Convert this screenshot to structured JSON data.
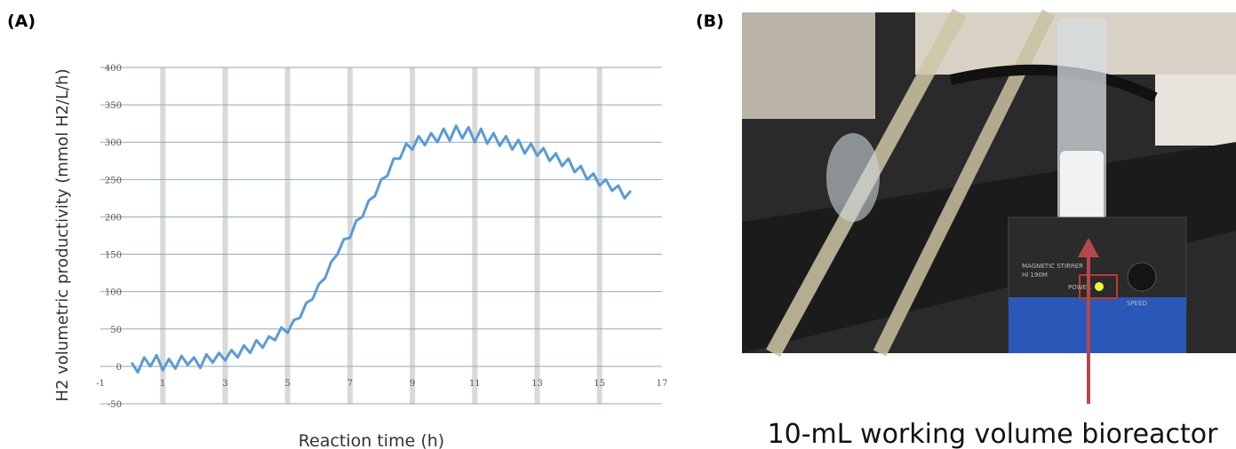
{
  "chart_data": {
    "type": "line",
    "panel_label": "(A)",
    "x_label": "Reaction time (h)",
    "y_label": "H2 volumetric productivity (mmol H2/L/h)",
    "x": [
      0,
      0.2,
      0.4,
      0.6,
      0.8,
      1.0,
      1.2,
      1.4,
      1.6,
      1.8,
      2.0,
      2.2,
      2.4,
      2.6,
      2.8,
      3.0,
      3.2,
      3.4,
      3.6,
      3.8,
      4.0,
      4.2,
      4.4,
      4.6,
      4.8,
      5.0,
      5.2,
      5.4,
      5.6,
      5.8,
      6.0,
      6.2,
      6.4,
      6.6,
      6.8,
      7.0,
      7.2,
      7.4,
      7.6,
      7.8,
      8.0,
      8.2,
      8.4,
      8.6,
      8.8,
      9.0,
      9.2,
      9.4,
      9.6,
      9.8,
      10.0,
      10.2,
      10.4,
      10.6,
      10.8,
      11.0,
      11.2,
      11.4,
      11.6,
      11.8,
      12.0,
      12.2,
      12.4,
      12.6,
      12.8,
      13.0,
      13.2,
      13.4,
      13.6,
      13.8,
      14.0,
      14.2,
      14.4,
      14.6,
      14.8,
      15.0,
      15.2,
      15.4,
      15.6,
      15.8,
      16.0
    ],
    "series": [
      {
        "color": "#5b9bd5",
        "values": [
          5,
          -8,
          12,
          0,
          15,
          -5,
          10,
          -3,
          14,
          2,
          12,
          -2,
          16,
          5,
          18,
          8,
          22,
          12,
          28,
          18,
          35,
          25,
          40,
          35,
          52,
          45,
          62,
          65,
          85,
          90,
          110,
          118,
          140,
          150,
          170,
          172,
          195,
          200,
          222,
          228,
          250,
          255,
          278,
          278,
          298,
          290,
          308,
          296,
          312,
          300,
          318,
          302,
          322,
          305,
          320,
          300,
          318,
          298,
          312,
          295,
          308,
          290,
          303,
          285,
          298,
          282,
          292,
          275,
          285,
          268,
          278,
          260,
          268,
          250,
          258,
          242,
          250,
          235,
          242,
          225,
          235
        ]
      }
    ],
    "xlim": [
      -1,
      17
    ],
    "xticks": [
      -1,
      1,
      3,
      5,
      7,
      9,
      11,
      13,
      15,
      17
    ],
    "ylim": [
      -50,
      400
    ],
    "yticks": [
      -50,
      0,
      50,
      100,
      150,
      200,
      250,
      300,
      350,
      400
    ],
    "grid": true
  },
  "photo": {
    "panel_label": "(B)",
    "caption": "10-mL working volume bioreactor",
    "device_label": "MAGNETIC STIRRER",
    "model": "HI 190M",
    "power": "POWER",
    "speed": "SPEED"
  }
}
